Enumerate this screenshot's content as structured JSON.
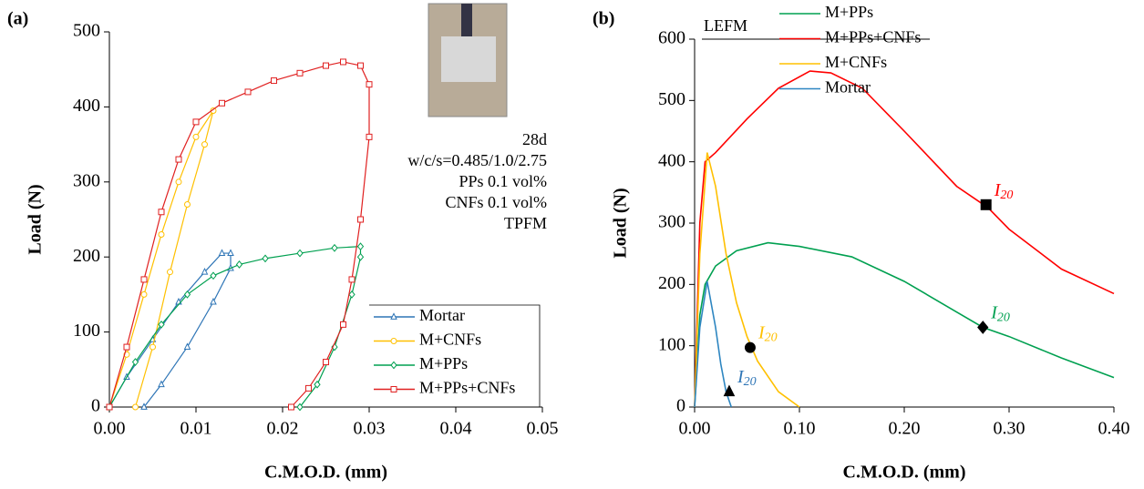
{
  "chart_data": [
    {
      "type": "line",
      "panel_label": "(a)",
      "xlabel": "C.M.O.D. (mm)",
      "ylabel": "Load (N)",
      "xlim": [
        0,
        0.05
      ],
      "xticks": [
        {
          "value": 0,
          "label": "0.00"
        },
        {
          "value": 0.01,
          "label": "0.01"
        },
        {
          "value": 0.02,
          "label": "0.02"
        },
        {
          "value": 0.03,
          "label": "0.03"
        },
        {
          "value": 0.04,
          "label": "0.04"
        },
        {
          "value": 0.05,
          "label": "0.05"
        }
      ],
      "ylim": [
        0,
        500
      ],
      "yticks": [
        0,
        100,
        200,
        300,
        400,
        500
      ],
      "legend": "lower right",
      "markers": true,
      "annotations": [
        "28d",
        "w/c/s=0.485/1.0/2.75",
        "PPs 0.1 vol%",
        "CNFs 0.1 vol%",
        "TPFM"
      ],
      "series": [
        {
          "name": "Mortar",
          "color": "#2e75b6",
          "marker": "triangle",
          "x": [
            0,
            0.002,
            0.005,
            0.008,
            0.011,
            0.013,
            0.014,
            0.014,
            0.012,
            0.009,
            0.006,
            0.004
          ],
          "values": [
            0,
            40,
            90,
            140,
            180,
            205,
            205,
            185,
            140,
            80,
            30,
            0
          ]
        },
        {
          "name": "M+CNFs",
          "color": "#ffc000",
          "marker": "circle",
          "x": [
            0,
            0.002,
            0.004,
            0.006,
            0.008,
            0.01,
            0.012,
            0.011,
            0.009,
            0.007,
            0.005,
            0.003
          ],
          "values": [
            0,
            70,
            150,
            230,
            300,
            360,
            395,
            350,
            270,
            180,
            80,
            0
          ]
        },
        {
          "name": "M+PPs",
          "color": "#00a050",
          "marker": "diamond",
          "x": [
            0,
            0.003,
            0.006,
            0.009,
            0.012,
            0.015,
            0.018,
            0.022,
            0.026,
            0.029,
            0.029,
            0.028,
            0.026,
            0.024,
            0.022
          ],
          "values": [
            0,
            60,
            110,
            150,
            175,
            190,
            198,
            205,
            212,
            214,
            200,
            150,
            80,
            30,
            0
          ]
        },
        {
          "name": "M+PPs+CNFs",
          "color": "#e02020",
          "marker": "square",
          "x": [
            0,
            0.002,
            0.004,
            0.006,
            0.008,
            0.01,
            0.013,
            0.016,
            0.019,
            0.022,
            0.025,
            0.027,
            0.029,
            0.03,
            0.03,
            0.029,
            0.028,
            0.027,
            0.025,
            0.023,
            0.021
          ],
          "values": [
            0,
            80,
            170,
            260,
            330,
            380,
            405,
            420,
            435,
            445,
            455,
            460,
            455,
            430,
            360,
            250,
            170,
            110,
            60,
            25,
            0
          ]
        }
      ]
    },
    {
      "type": "line",
      "panel_label": "(b)",
      "xlabel": "C.M.O.D. (mm)",
      "ylabel": "Load (N)",
      "xlim": [
        0,
        0.4
      ],
      "xticks": [
        {
          "value": 0,
          "label": "0.00"
        },
        {
          "value": 0.1,
          "label": "0.10"
        },
        {
          "value": 0.2,
          "label": "0.20"
        },
        {
          "value": 0.3,
          "label": "0.30"
        },
        {
          "value": 0.4,
          "label": "0.40"
        }
      ],
      "ylim": [
        0,
        600
      ],
      "yticks": [
        0,
        100,
        200,
        300,
        400,
        500,
        600
      ],
      "legend": "top",
      "markers": false,
      "annotations": [
        "LEFM"
      ],
      "series": [
        {
          "name": "M+PPs",
          "color": "#00a050",
          "x": [
            0,
            0.005,
            0.01,
            0.02,
            0.04,
            0.07,
            0.1,
            0.15,
            0.2,
            0.25,
            0.275,
            0.3,
            0.35,
            0.4
          ],
          "values": [
            0,
            150,
            200,
            230,
            255,
            268,
            262,
            245,
            205,
            155,
            130,
            115,
            80,
            48
          ]
        },
        {
          "name": "M+PPs+CNFs",
          "color": "#ff0000",
          "x": [
            0,
            0.005,
            0.01,
            0.02,
            0.05,
            0.08,
            0.11,
            0.13,
            0.16,
            0.2,
            0.25,
            0.28,
            0.3,
            0.35,
            0.4
          ],
          "values": [
            0,
            300,
            400,
            415,
            470,
            520,
            548,
            545,
            520,
            450,
            360,
            325,
            290,
            225,
            185
          ]
        },
        {
          "name": "M+CNFs",
          "color": "#ffc000",
          "x": [
            0,
            0.005,
            0.012,
            0.02,
            0.03,
            0.04,
            0.05,
            0.06,
            0.08,
            0.1
          ],
          "values": [
            0,
            250,
            415,
            360,
            250,
            170,
            115,
            75,
            25,
            0
          ]
        },
        {
          "name": "Mortar",
          "color": "#2e86c1",
          "x": [
            0,
            0.005,
            0.012,
            0.02,
            0.025,
            0.03,
            0.035
          ],
          "values": [
            0,
            130,
            205,
            130,
            70,
            25,
            0
          ]
        }
      ],
      "points": [
        {
          "x": 0.033,
          "y": 25,
          "marker": "triangle",
          "label": "I",
          "sub": "20",
          "color": "#2e75b6"
        },
        {
          "x": 0.053,
          "y": 97,
          "marker": "circle",
          "label": "I",
          "sub": "20",
          "color": "#ffc000"
        },
        {
          "x": 0.275,
          "y": 130,
          "marker": "diamond",
          "label": "I",
          "sub": "20",
          "color": "#00a050"
        },
        {
          "x": 0.278,
          "y": 330,
          "marker": "square",
          "label": "I",
          "sub": "20",
          "color": "#ff0000"
        }
      ]
    }
  ]
}
